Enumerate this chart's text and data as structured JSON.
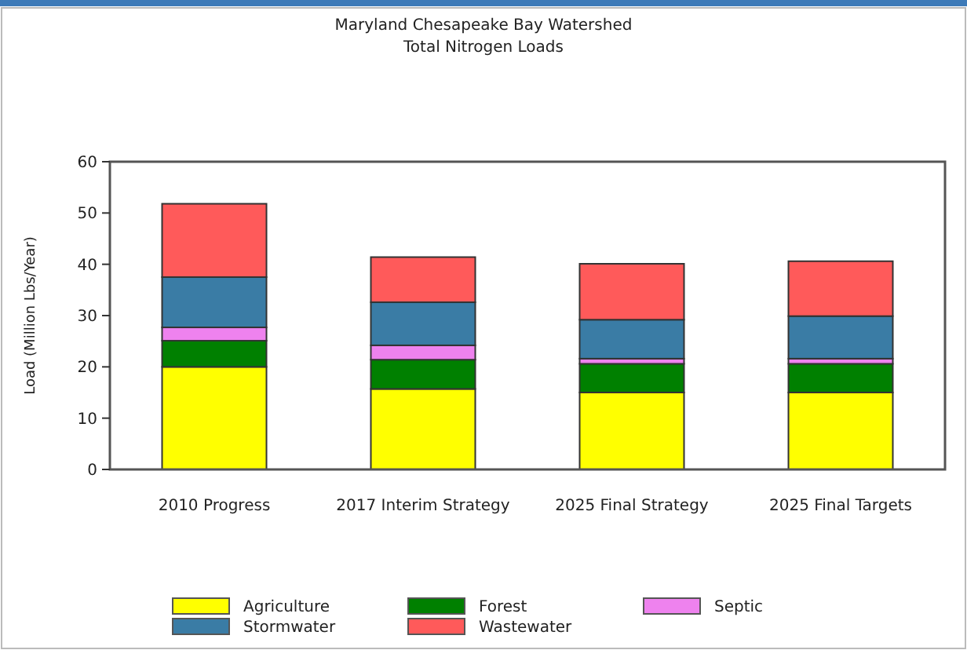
{
  "chart_data": {
    "type": "bar",
    "title": "Maryland Chesapeake Bay Watershed",
    "subtitle": "Total Nitrogen Loads",
    "ylabel": "Load (Million Lbs/Year)",
    "categories": [
      "2010 Progress",
      "2017 Interim Strategy",
      "2025 Final Strategy",
      "2025 Final Targets"
    ],
    "stacked": true,
    "ylim": [
      0,
      60
    ],
    "yticks": [
      0,
      10,
      20,
      30,
      40,
      50,
      60
    ],
    "grid": false,
    "legend": "bottom",
    "series": [
      {
        "name": "Agriculture",
        "color": "#ffff00",
        "values": [
          20,
          15.7,
          15,
          15
        ]
      },
      {
        "name": "Forest",
        "color": "#008000",
        "values": [
          5.1,
          5.7,
          5.6,
          5.6
        ]
      },
      {
        "name": "Septic",
        "color": "#ee82ee",
        "values": [
          2.6,
          2.8,
          1,
          1
        ]
      },
      {
        "name": "Stormwater",
        "color": "#3a7ca5",
        "values": [
          9.8,
          8.4,
          7.6,
          8.3
        ]
      },
      {
        "name": "Wastewater",
        "color": "#ff5a5a",
        "values": [
          14.3,
          8.8,
          10.9,
          10.7
        ]
      }
    ]
  }
}
